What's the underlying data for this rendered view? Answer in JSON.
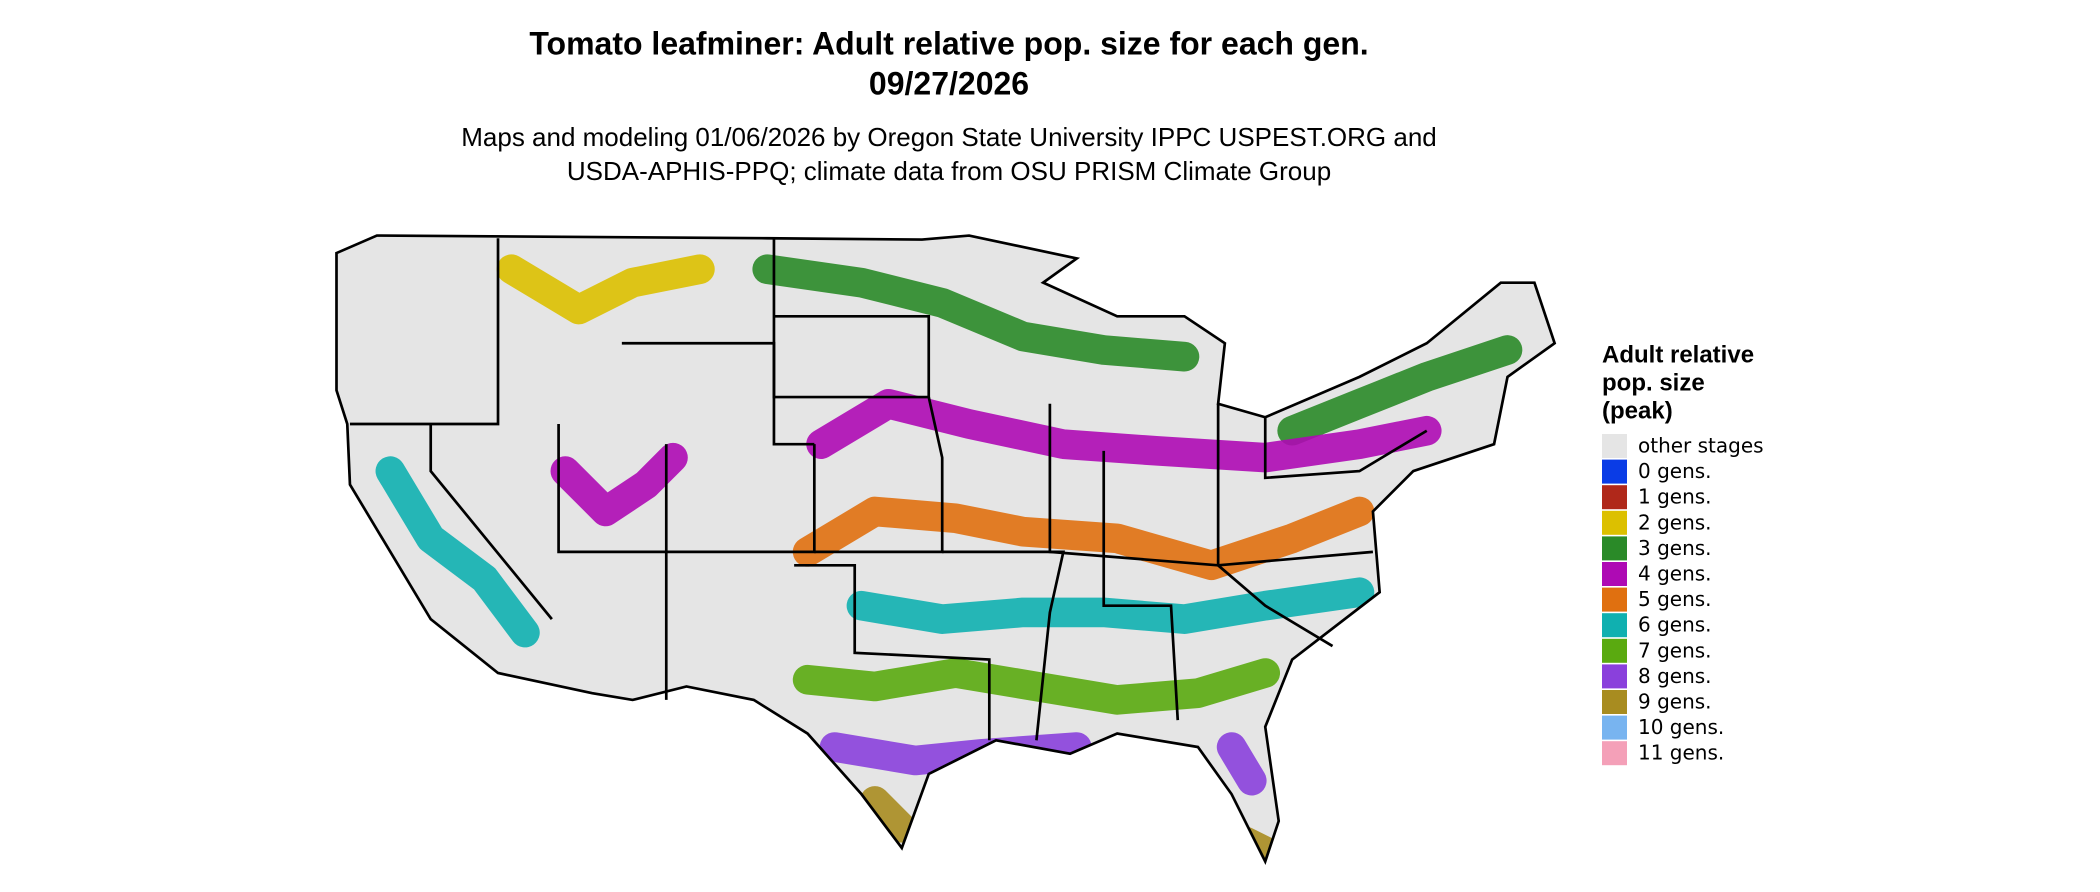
{
  "header": {
    "title": "Tomato leafminer: Adult relative pop. size for each gen.",
    "date": "09/27/2026",
    "subtitle": [
      "Maps and modeling 01/06/2026 by Oregon State University IPPC USPEST.ORG and",
      "USDA-APHIS-PPQ; climate data from OSU PRISM Climate Group"
    ]
  },
  "legend": {
    "title": [
      "Adult relative",
      "pop. size",
      "(peak)"
    ],
    "items": [
      {
        "label": "other stages",
        "color": "#e5e5e5"
      },
      {
        "label": "0 gens.",
        "color": "#0a3ce6"
      },
      {
        "label": "1 gens.",
        "color": "#b0281a"
      },
      {
        "label": "2 gens.",
        "color": "#dcc000"
      },
      {
        "label": "3 gens.",
        "color": "#2a8a28"
      },
      {
        "label": "4 gens.",
        "color": "#ae0ab4"
      },
      {
        "label": "5 gens.",
        "color": "#e07010"
      },
      {
        "label": "6 gens.",
        "color": "#10b0b0"
      },
      {
        "label": "7 gens.",
        "color": "#5aaa10"
      },
      {
        "label": "8 gens.",
        "color": "#8a40dc"
      },
      {
        "label": "9 gens.",
        "color": "#a88c20"
      },
      {
        "label": "10 gens.",
        "color": "#78b4f0"
      },
      {
        "label": "11 gens.",
        "color": "#f4a0b8"
      }
    ]
  }
}
